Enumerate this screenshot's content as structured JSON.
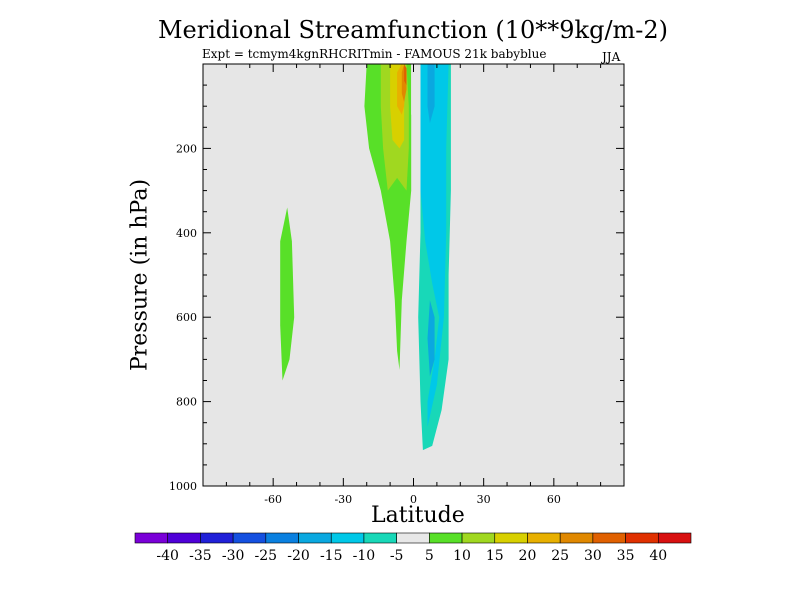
{
  "chart_data": {
    "type": "contour",
    "title": "Meridional Streamfunction (10**9kg/m-2)",
    "subtitle": "Expt = tcmym4kgnRHCRITmin - FAMOUS 21k babyblue",
    "season": "JJA",
    "xlabel": "Latitude",
    "ylabel": "Pressure (in hPa)",
    "xlim": [
      -90,
      90
    ],
    "ylim": [
      1000,
      0
    ],
    "xticks": [
      -60,
      -30,
      0,
      30,
      60
    ],
    "yticks": [
      200,
      400,
      600,
      800,
      1000
    ],
    "colorbar": {
      "levels": [
        "-40",
        "-35",
        "-30",
        "-25",
        "-20",
        "-15",
        "-10",
        "-5",
        "5",
        "10",
        "15",
        "20",
        "25",
        "30",
        "35",
        "40"
      ],
      "colors": [
        "#7a00d8",
        "#4f00d8",
        "#2020d8",
        "#1450e0",
        "#0a80e0",
        "#0aa8e0",
        "#00c8e8",
        "#18d8b8",
        "#e8e8e8",
        "#58e028",
        "#a0d820",
        "#d8d000",
        "#e8b000",
        "#e08800",
        "#e06000",
        "#e03000",
        "#d81010"
      ]
    },
    "regions": [
      {
        "name": "southern-positive-cell",
        "band": "5",
        "color": "#58e028",
        "points": [
          [
            -9,
            0
          ],
          [
            -20,
            0
          ],
          [
            -21,
            100
          ],
          [
            -19,
            200
          ],
          [
            -14,
            300
          ],
          [
            -10,
            420
          ],
          [
            -8,
            560
          ],
          [
            -7,
            680
          ],
          [
            -6,
            725
          ],
          [
            -5,
            560
          ],
          [
            -3,
            420
          ],
          [
            -1,
            300
          ],
          [
            -1,
            100
          ],
          [
            -1,
            0
          ]
        ]
      },
      {
        "name": "southern-positive-cell-10",
        "band": "10",
        "color": "#a0d820",
        "points": [
          [
            -9,
            0
          ],
          [
            -14,
            0
          ],
          [
            -14,
            100
          ],
          [
            -13,
            200
          ],
          [
            -11,
            300
          ],
          [
            -7,
            270
          ],
          [
            -3,
            300
          ],
          [
            -2,
            200
          ],
          [
            -2,
            100
          ],
          [
            -3,
            0
          ]
        ]
      },
      {
        "name": "southern-positive-cell-15",
        "band": "15",
        "color": "#d8d000",
        "points": [
          [
            -7,
            0
          ],
          [
            -10,
            0
          ],
          [
            -10,
            100
          ],
          [
            -9,
            180
          ],
          [
            -6,
            200
          ],
          [
            -4,
            180
          ],
          [
            -4,
            100
          ],
          [
            -4,
            0
          ]
        ]
      },
      {
        "name": "southern-positive-cell-20",
        "band": "20",
        "color": "#e8b000",
        "points": [
          [
            -5,
            0
          ],
          [
            -7,
            20
          ],
          [
            -7,
            100
          ],
          [
            -5,
            120
          ],
          [
            -4,
            100
          ],
          [
            -3,
            20
          ]
        ]
      },
      {
        "name": "southern-positive-cell-25",
        "band": "25",
        "color": "#e08800",
        "points": [
          [
            -4,
            0
          ],
          [
            -5,
            20
          ],
          [
            -5,
            70
          ],
          [
            -4,
            90
          ],
          [
            -3,
            60
          ],
          [
            -3,
            20
          ]
        ]
      },
      {
        "name": "southern-positive-cell-30",
        "band": "30",
        "color": "#e06000",
        "points": [
          [
            -4,
            0
          ],
          [
            -4,
            40
          ],
          [
            -3,
            50
          ],
          [
            -3,
            10
          ]
        ]
      },
      {
        "name": "southern-midlatitude-cell",
        "band": "5",
        "color": "#58e028",
        "points": [
          [
            -54,
            340
          ],
          [
            -57,
            420
          ],
          [
            -57,
            520
          ],
          [
            -57,
            620
          ],
          [
            -56,
            750
          ],
          [
            -53,
            700
          ],
          [
            -51,
            600
          ],
          [
            -52,
            420
          ]
        ]
      },
      {
        "name": "northern-negative-cell",
        "band": "-5",
        "color": "#18d8b8",
        "points": [
          [
            3,
            0
          ],
          [
            3,
            200
          ],
          [
            3,
            400
          ],
          [
            2,
            600
          ],
          [
            3,
            800
          ],
          [
            4,
            915
          ],
          [
            8,
            905
          ],
          [
            12,
            820
          ],
          [
            15,
            700
          ],
          [
            15,
            500
          ],
          [
            16,
            300
          ],
          [
            16,
            100
          ],
          [
            16,
            0
          ]
        ]
      },
      {
        "name": "northern-negative-cell-10",
        "band": "-10",
        "color": "#00c8e8",
        "points": [
          [
            3,
            0
          ],
          [
            3,
            300
          ],
          [
            5,
            420
          ],
          [
            8,
            520
          ],
          [
            11,
            600
          ],
          [
            9,
            700
          ],
          [
            6,
            800
          ],
          [
            6,
            860
          ],
          [
            10,
            760
          ],
          [
            13,
            600
          ],
          [
            14,
            400
          ],
          [
            14,
            200
          ],
          [
            15,
            0
          ]
        ]
      },
      {
        "name": "northern-negative-cell-15",
        "band": "-15",
        "color": "#0aa8e0",
        "points": [
          [
            6,
            0
          ],
          [
            6,
            100
          ],
          [
            7,
            140
          ],
          [
            9,
            100
          ],
          [
            9,
            0
          ]
        ]
      },
      {
        "name": "northern-negative-cell-15b",
        "band": "-15",
        "color": "#0aa8e0",
        "points": [
          [
            7,
            560
          ],
          [
            6,
            650
          ],
          [
            7,
            740
          ],
          [
            9,
            700
          ],
          [
            9,
            600
          ]
        ]
      }
    ]
  }
}
